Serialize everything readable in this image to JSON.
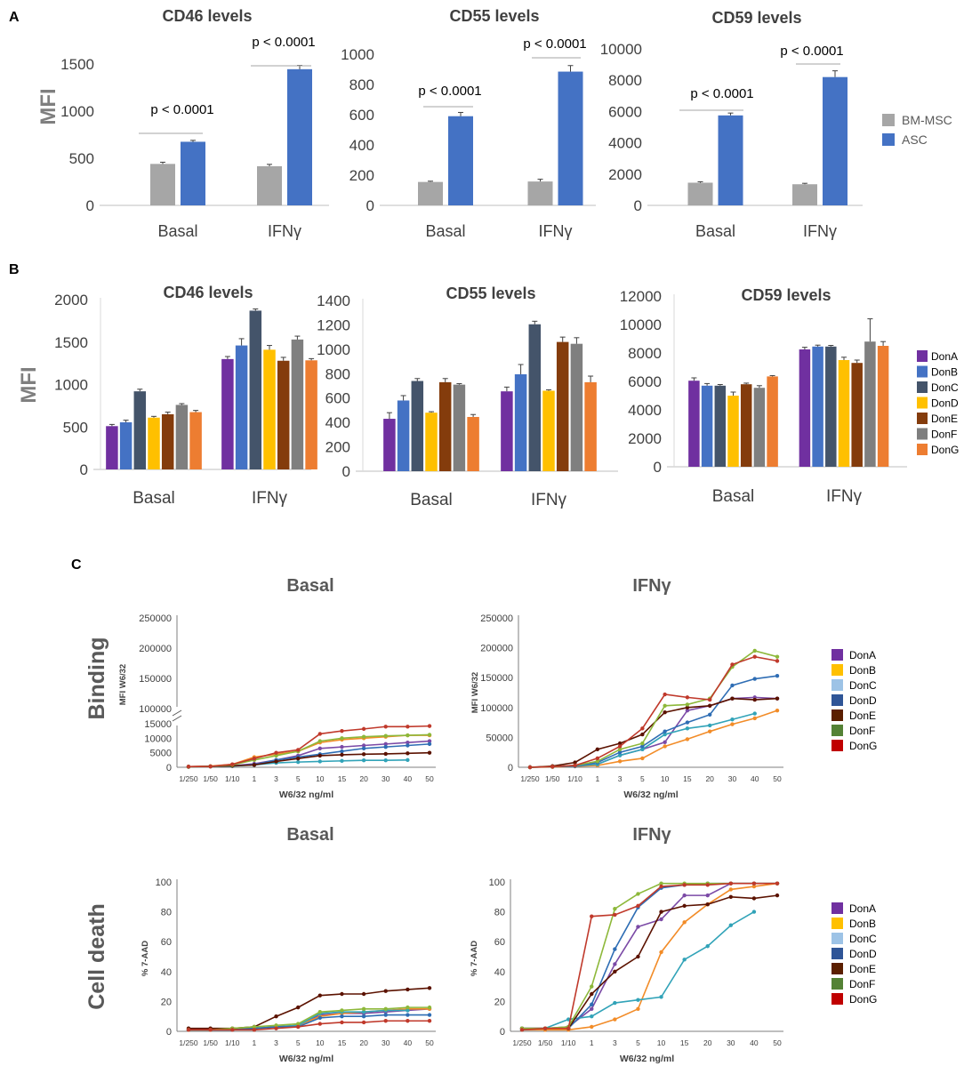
{
  "panels": {
    "A": "A",
    "B": "B",
    "C": "C"
  },
  "donors": [
    "DonA",
    "DonB",
    "DonC",
    "DonD",
    "DonE",
    "DonF",
    "DonG"
  ],
  "colors": {
    "bm_msc": "#A6A6A6",
    "asc": "#4472C4",
    "donB": {
      "DonA": "#7030A0",
      "DonB": "#4472C4",
      "DonC": "#44546A",
      "DonD": "#FFC000",
      "DonE": "#843C0C",
      "DonF": "#7F7F7F",
      "DonG": "#ED7D31"
    },
    "donC": {
      "DonA": "#7030A0",
      "DonB": "#FFC000",
      "DonC": "#9DC3E6",
      "DonD": "#2F5597",
      "DonE": "#5B1F00",
      "DonF": "#548235",
      "DonG": "#C00000"
    },
    "lineC": {
      "DonA": "#7B4AA6",
      "DonB": "#F28C28",
      "DonC": "#31A3B8",
      "DonD": "#2E6DB4",
      "DonE": "#5B1200",
      "DonF": "#8DB83A",
      "DonG": "#C0392B"
    }
  },
  "legendA": {
    "bm_msc": "BM-MSC",
    "asc": "ASC"
  },
  "chart_data": [
    {
      "id": "A-CD46",
      "type": "bar",
      "panel": "A",
      "title": "CD46 levels",
      "ylabel": "MFI",
      "categories": [
        "Basal",
        "IFNγ"
      ],
      "ylim": [
        0,
        1500
      ],
      "yticks": [
        0,
        500,
        1000,
        1500
      ],
      "series": [
        {
          "name": "BM-MSC",
          "values": [
            440,
            415
          ],
          "errors": [
            18,
            20
          ]
        },
        {
          "name": "ASC",
          "values": [
            675,
            1445
          ],
          "errors": [
            15,
            40
          ]
        }
      ],
      "annotations": [
        "p < 0.0001",
        "p < 0.0001"
      ]
    },
    {
      "id": "A-CD55",
      "type": "bar",
      "panel": "A",
      "title": "CD55 levels",
      "ylabel": "",
      "categories": [
        "Basal",
        "IFNγ"
      ],
      "ylim": [
        0,
        1000
      ],
      "yticks": [
        0,
        200,
        400,
        600,
        800,
        1000
      ],
      "series": [
        {
          "name": "BM-MSC",
          "values": [
            155,
            158
          ],
          "errors": [
            5,
            15
          ]
        },
        {
          "name": "ASC",
          "values": [
            590,
            885
          ],
          "errors": [
            25,
            40
          ]
        }
      ],
      "annotations": [
        "p < 0.0001",
        "p < 0.0001"
      ]
    },
    {
      "id": "A-CD59",
      "type": "bar",
      "panel": "A",
      "title": "CD59 levels",
      "ylabel": "",
      "categories": [
        "Basal",
        "IFNγ"
      ],
      "ylim": [
        0,
        10000
      ],
      "yticks": [
        0,
        2000,
        4000,
        6000,
        8000,
        10000
      ],
      "series": [
        {
          "name": "BM-MSC",
          "values": [
            1450,
            1350
          ],
          "errors": [
            60,
            60
          ]
        },
        {
          "name": "ASC",
          "values": [
            5750,
            8200
          ],
          "errors": [
            150,
            400
          ]
        }
      ],
      "annotations": [
        "p < 0.0001",
        "p < 0.0001"
      ]
    },
    {
      "id": "B-CD46",
      "type": "bar",
      "panel": "B",
      "title": "CD46 levels",
      "ylabel": "MFI",
      "categories": [
        "Basal",
        "IFNγ"
      ],
      "ylim": [
        0,
        2000
      ],
      "yticks": [
        0,
        500,
        1000,
        1500,
        2000
      ],
      "series": [
        {
          "name": "DonA",
          "values": [
            510,
            1300
          ],
          "errors": [
            20,
            30
          ]
        },
        {
          "name": "DonB",
          "values": [
            555,
            1460
          ],
          "errors": [
            25,
            80
          ]
        },
        {
          "name": "DonC",
          "values": [
            920,
            1870
          ],
          "errors": [
            25,
            20
          ]
        },
        {
          "name": "DonD",
          "values": [
            610,
            1410
          ],
          "errors": [
            15,
            50
          ]
        },
        {
          "name": "DonE",
          "values": [
            650,
            1280
          ],
          "errors": [
            25,
            40
          ]
        },
        {
          "name": "DonF",
          "values": [
            760,
            1530
          ],
          "errors": [
            15,
            40
          ]
        },
        {
          "name": "DonG",
          "values": [
            675,
            1285
          ],
          "errors": [
            20,
            20
          ]
        }
      ]
    },
    {
      "id": "B-CD55",
      "type": "bar",
      "panel": "B",
      "title": "CD55 levels",
      "ylabel": "",
      "categories": [
        "Basal",
        "IFNγ"
      ],
      "ylim": [
        0,
        1400
      ],
      "yticks": [
        0,
        200,
        400,
        600,
        800,
        1000,
        1200,
        1400
      ],
      "series": [
        {
          "name": "DonA",
          "values": [
            430,
            655
          ],
          "errors": [
            50,
            35
          ]
        },
        {
          "name": "DonB",
          "values": [
            580,
            795
          ],
          "errors": [
            40,
            80
          ]
        },
        {
          "name": "DonC",
          "values": [
            740,
            1205
          ],
          "errors": [
            20,
            25
          ]
        },
        {
          "name": "DonD",
          "values": [
            480,
            660
          ],
          "errors": [
            8,
            8
          ]
        },
        {
          "name": "DonE",
          "values": [
            730,
            1060
          ],
          "errors": [
            30,
            40
          ]
        },
        {
          "name": "DonF",
          "values": [
            710,
            1045
          ],
          "errors": [
            8,
            50
          ]
        },
        {
          "name": "DonG",
          "values": [
            445,
            730
          ],
          "errors": [
            20,
            50
          ]
        }
      ]
    },
    {
      "id": "B-CD59",
      "type": "bar",
      "panel": "B",
      "title": "CD59 levels",
      "ylabel": "",
      "categories": [
        "Basal",
        "IFNγ"
      ],
      "ylim": [
        0,
        12000
      ],
      "yticks": [
        0,
        2000,
        4000,
        6000,
        8000,
        10000,
        12000
      ],
      "series": [
        {
          "name": "DonA",
          "values": [
            6050,
            8250
          ],
          "errors": [
            200,
            150
          ]
        },
        {
          "name": "DonB",
          "values": [
            5700,
            8450
          ],
          "errors": [
            150,
            100
          ]
        },
        {
          "name": "DonC",
          "values": [
            5700,
            8450
          ],
          "errors": [
            80,
            80
          ]
        },
        {
          "name": "DonD",
          "values": [
            5000,
            7500
          ],
          "errors": [
            250,
            200
          ]
        },
        {
          "name": "DonE",
          "values": [
            5800,
            7300
          ],
          "errors": [
            80,
            200
          ]
        },
        {
          "name": "DonF",
          "values": [
            5550,
            8800
          ],
          "errors": [
            150,
            1600
          ]
        },
        {
          "name": "DonG",
          "values": [
            6350,
            8500
          ],
          "errors": [
            60,
            300
          ]
        }
      ]
    },
    {
      "id": "C-binding-basal",
      "type": "line",
      "panel": "C",
      "title": "Basal",
      "row_label": "Binding",
      "ylabel": "MFI W6/32",
      "xlabel": "W6/32 ng/ml",
      "x": [
        "1/250",
        "1/50",
        "1/10",
        "1",
        "3",
        "5",
        "10",
        "15",
        "20",
        "30",
        "40",
        "50"
      ],
      "yticks": [
        "0",
        "5000",
        "10000",
        "15000",
        "100000",
        "150000",
        "200000",
        "250000"
      ],
      "axis_break": true,
      "series": [
        {
          "name": "DonA",
          "values": [
            200,
            300,
            500,
            1200,
            2500,
            4000,
            6500,
            7000,
            7500,
            8000,
            8500,
            9000
          ]
        },
        {
          "name": "DonB",
          "values": [
            200,
            400,
            1000,
            3500,
            4500,
            5500,
            8500,
            9500,
            10000,
            10500,
            11000,
            11000
          ]
        },
        {
          "name": "DonC",
          "values": [
            150,
            300,
            400,
            800,
            1500,
            1800,
            2000,
            2200,
            2400,
            2400,
            2500,
            null
          ]
        },
        {
          "name": "DonD",
          "values": [
            150,
            300,
            500,
            900,
            2500,
            3500,
            4500,
            5500,
            6500,
            7000,
            7500,
            8000
          ]
        },
        {
          "name": "DonE",
          "values": [
            200,
            300,
            500,
            800,
            2000,
            3000,
            4000,
            4300,
            4500,
            4600,
            4800,
            5000
          ]
        },
        {
          "name": "DonF",
          "values": [
            150,
            300,
            800,
            2500,
            4000,
            5500,
            9000,
            10000,
            10500,
            10800,
            11000,
            11200
          ]
        },
        {
          "name": "DonG",
          "values": [
            200,
            300,
            1000,
            3000,
            5000,
            6000,
            11500,
            12500,
            13200,
            14000,
            14000,
            14200
          ]
        }
      ]
    },
    {
      "id": "C-binding-ifng",
      "type": "line",
      "panel": "C",
      "title": "IFNγ",
      "ylabel": "MFI W6/32",
      "xlabel": "W6/32 ng/ml",
      "x": [
        "1/250",
        "1/50",
        "1/10",
        "1",
        "3",
        "5",
        "10",
        "15",
        "20",
        "30",
        "40",
        "50"
      ],
      "ylim": [
        0,
        250000
      ],
      "yticks": [
        "0",
        "50000",
        "100000",
        "150000",
        "200000",
        "250000"
      ],
      "series": [
        {
          "name": "DonA",
          "values": [
            0,
            1000,
            3000,
            5000,
            20000,
            30000,
            42000,
            95000,
            103000,
            115000,
            117000,
            115000
          ]
        },
        {
          "name": "DonB",
          "values": [
            0,
            500,
            1500,
            3000,
            10000,
            15000,
            35000,
            47000,
            60000,
            72000,
            82000,
            95000
          ]
        },
        {
          "name": "DonC",
          "values": [
            0,
            800,
            2000,
            5000,
            20000,
            30000,
            55000,
            65000,
            70000,
            80000,
            90000,
            null
          ]
        },
        {
          "name": "DonD",
          "values": [
            0,
            800,
            2000,
            8000,
            25000,
            35000,
            60000,
            75000,
            88000,
            137000,
            148000,
            153000
          ]
        },
        {
          "name": "DonE",
          "values": [
            0,
            2000,
            8000,
            30000,
            40000,
            55000,
            92000,
            100000,
            103000,
            115000,
            113000,
            115000
          ]
        },
        {
          "name": "DonF",
          "values": [
            0,
            1000,
            3000,
            10000,
            30000,
            40000,
            103000,
            105000,
            115000,
            168000,
            195000,
            185000
          ]
        },
        {
          "name": "DonG",
          "values": [
            0,
            1000,
            3000,
            15000,
            35000,
            65000,
            122000,
            117000,
            113000,
            172000,
            185000,
            178000
          ]
        }
      ]
    },
    {
      "id": "C-death-basal",
      "type": "line",
      "panel": "C",
      "title": "Basal",
      "row_label": "Cell death",
      "ylabel": "% 7-AAD",
      "xlabel": "W6/32 ng/ml",
      "x": [
        "1/250",
        "1/50",
        "1/10",
        "1",
        "3",
        "5",
        "10",
        "15",
        "20",
        "30",
        "40",
        "50"
      ],
      "ylim": [
        0,
        100
      ],
      "yticks": [
        "0",
        "20",
        "40",
        "60",
        "80",
        "100"
      ],
      "series": [
        {
          "name": "DonA",
          "values": [
            1,
            1,
            1,
            2,
            3,
            4,
            11,
            12,
            12,
            13,
            14,
            15
          ]
        },
        {
          "name": "DonB",
          "values": [
            1,
            1,
            1,
            2,
            3,
            4,
            10,
            12,
            13,
            14,
            15,
            15
          ]
        },
        {
          "name": "DonC",
          "values": [
            1,
            1,
            1,
            2,
            3,
            4,
            12,
            13,
            13,
            14,
            14,
            null
          ]
        },
        {
          "name": "DonD",
          "values": [
            1,
            1,
            1,
            2,
            3,
            3,
            9,
            10,
            10,
            11,
            11,
            11
          ]
        },
        {
          "name": "DonE",
          "values": [
            2,
            2,
            2,
            3,
            10,
            16,
            24,
            25,
            25,
            27,
            28,
            29
          ]
        },
        {
          "name": "DonF",
          "values": [
            1,
            1,
            2,
            3,
            4,
            5,
            13,
            14,
            15,
            15,
            16,
            16
          ]
        },
        {
          "name": "DonG",
          "values": [
            1,
            1,
            1,
            1,
            2,
            3,
            5,
            6,
            6,
            7,
            7,
            7
          ]
        }
      ]
    },
    {
      "id": "C-death-ifng",
      "type": "line",
      "panel": "C",
      "title": "IFNγ",
      "ylabel": "% 7-AAD",
      "xlabel": "W6/32 ng/ml",
      "x": [
        "1/250",
        "1/50",
        "1/10",
        "1",
        "3",
        "5",
        "10",
        "15",
        "20",
        "30",
        "40",
        "50"
      ],
      "ylim": [
        0,
        100
      ],
      "yticks": [
        "0",
        "20",
        "40",
        "60",
        "80",
        "100"
      ],
      "series": [
        {
          "name": "DonA",
          "values": [
            2,
            2,
            3,
            15,
            45,
            70,
            75,
            91,
            91,
            99,
            99,
            99
          ]
        },
        {
          "name": "DonB",
          "values": [
            1,
            1,
            1,
            3,
            8,
            15,
            53,
            73,
            85,
            95,
            97,
            99
          ]
        },
        {
          "name": "DonC",
          "values": [
            1,
            2,
            8,
            10,
            19,
            21,
            23,
            48,
            57,
            71,
            80,
            null
          ]
        },
        {
          "name": "DonD",
          "values": [
            2,
            2,
            2,
            18,
            55,
            83,
            96,
            98,
            99,
            99,
            99,
            99
          ]
        },
        {
          "name": "DonE",
          "values": [
            2,
            2,
            2,
            25,
            40,
            50,
            80,
            84,
            85,
            90,
            89,
            91
          ]
        },
        {
          "name": "DonF",
          "values": [
            2,
            2,
            3,
            30,
            82,
            92,
            99,
            99,
            99,
            99,
            99,
            99
          ]
        },
        {
          "name": "DonG",
          "values": [
            1,
            2,
            2,
            77,
            78,
            84,
            97,
            98,
            98,
            99,
            99,
            99
          ]
        }
      ]
    }
  ]
}
